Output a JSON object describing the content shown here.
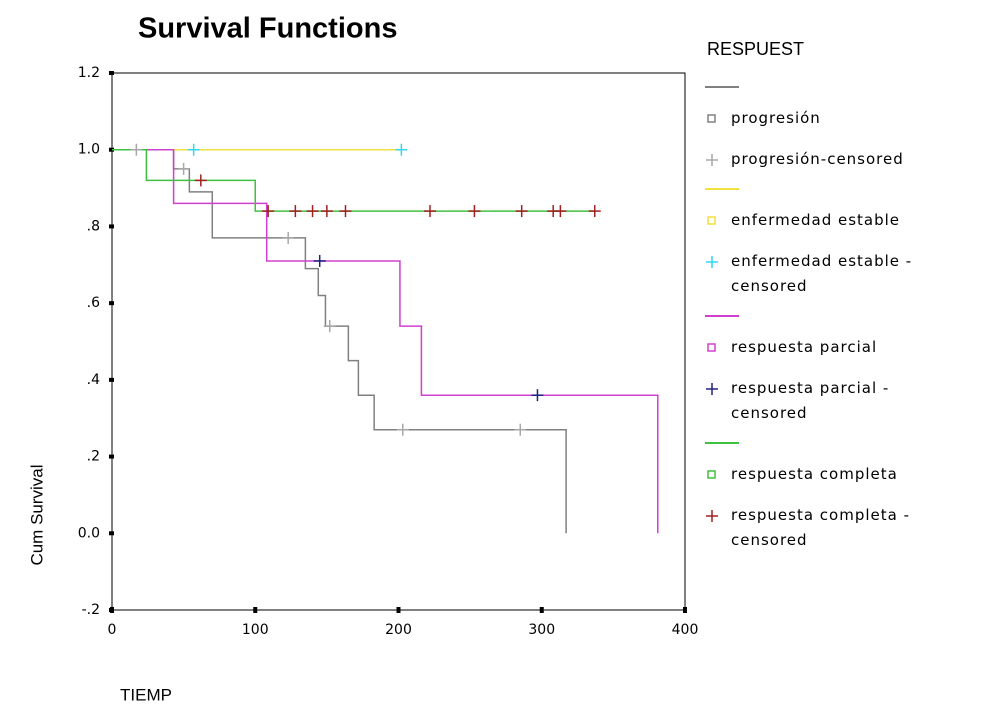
{
  "chart_data": {
    "type": "survival",
    "title": "Survival Functions",
    "x_label": "TIEMP",
    "y_label": "Cum Survival",
    "legend_title": "RESPUEST",
    "xlim": [
      0,
      400
    ],
    "xticks": [
      0,
      100,
      200,
      300,
      400
    ],
    "ylim": [
      -0.2,
      1.2
    ],
    "yticks": [
      {
        "value": -0.2,
        "label": "-.2"
      },
      {
        "value": 0,
        "label": "0.0"
      },
      {
        "value": 0.2,
        "label": ".2"
      },
      {
        "value": 0.4,
        "label": ".4"
      },
      {
        "value": 0.6,
        "label": ".6"
      },
      {
        "value": 0.8,
        "label": ".8"
      },
      {
        "value": 1,
        "label": "1.0"
      },
      1.2
    ],
    "series": [
      {
        "name": "progresión",
        "kind": "step",
        "marker": "square",
        "color": "#808080",
        "x": [
          0,
          43,
          54,
          70,
          135,
          144,
          149,
          165,
          172,
          183,
          317
        ],
        "values": [
          1,
          0.95,
          0.89,
          0.77,
          0.69,
          0.62,
          0.54,
          0.45,
          0.36,
          0.27,
          0
        ]
      },
      {
        "name": "progresión-censored",
        "kind": "censor",
        "marker": "plus",
        "color": "#a8a8a8",
        "x": [
          17,
          50,
          123,
          152,
          203,
          285
        ],
        "values": [
          1,
          0.95,
          0.77,
          0.54,
          0.27,
          0.27
        ]
      },
      {
        "name": "enfermedad estable",
        "kind": "step",
        "marker": "square",
        "color": "#f0e040",
        "x": [
          0,
          202
        ],
        "values": [
          1,
          1
        ]
      },
      {
        "name": "enfermedad estable -censored",
        "kind": "censor",
        "marker": "plus",
        "color": "#30d8f0",
        "x": [
          57,
          202
        ],
        "values": [
          1,
          1
        ]
      },
      {
        "name": "respuesta parcial",
        "kind": "step",
        "marker": "square",
        "color": "#d040d0",
        "x": [
          0,
          43,
          108,
          201,
          216,
          381
        ],
        "values": [
          1,
          0.86,
          0.71,
          0.54,
          0.36,
          0
        ]
      },
      {
        "name": "respuesta parcial -censored",
        "kind": "censor",
        "marker": "plus",
        "color": "#202080",
        "x": [
          145,
          297
        ],
        "values": [
          0.71,
          0.36
        ]
      },
      {
        "name": "respuesta completa",
        "kind": "step",
        "marker": "square",
        "color": "#40c040",
        "x": [
          0,
          24,
          100,
          337
        ],
        "values": [
          1,
          0.92,
          0.84,
          0.84
        ]
      },
      {
        "name": "respuesta completa -censored",
        "kind": "censor",
        "marker": "plus",
        "color": "#a02020",
        "x": [
          62,
          109,
          128,
          140,
          150,
          163,
          222,
          253,
          286,
          308,
          313,
          337
        ],
        "values": [
          0.92,
          0.84,
          0.84,
          0.84,
          0.84,
          0.84,
          0.84,
          0.84,
          0.84,
          0.84,
          0.84,
          0.84
        ]
      }
    ]
  }
}
